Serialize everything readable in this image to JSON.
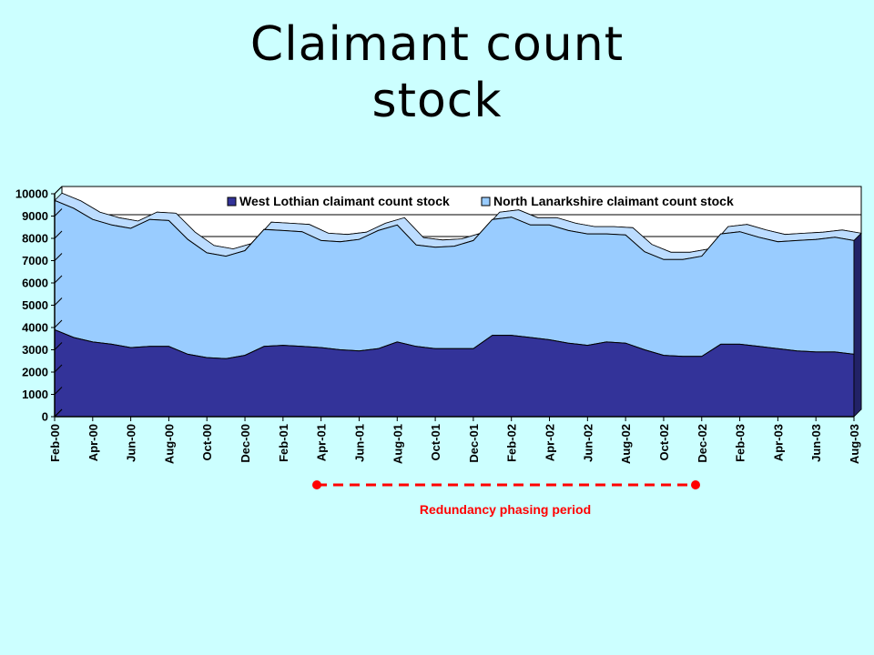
{
  "title_line1": "Claimant count",
  "title_line2": "stock",
  "annotation": "Redundancy phasing period",
  "colors": {
    "background": "#ccffff",
    "west_lothian": "#333399",
    "north_lanarkshire": "#99ccff",
    "annotation": "#ff0000"
  },
  "chart_data": {
    "type": "area",
    "stacked": true,
    "y_ticks": [
      "0",
      "1000",
      "2000",
      "3000",
      "4000",
      "5000",
      "6000",
      "7000",
      "8000",
      "9000",
      "10000"
    ],
    "ylim": [
      0,
      10000
    ],
    "x_tick_labels": [
      "Feb-00",
      "Apr-00",
      "Jun-00",
      "Aug-00",
      "Oct-00",
      "Dec-00",
      "Feb-01",
      "Apr-01",
      "Jun-01",
      "Aug-01",
      "Oct-01",
      "Dec-01",
      "Feb-02",
      "Apr-02",
      "Jun-02",
      "Aug-02",
      "Oct-02",
      "Dec-02",
      "Feb-03",
      "Apr-03",
      "Jun-03",
      "Aug-03"
    ],
    "x": [
      "Feb-00",
      "Mar-00",
      "Apr-00",
      "May-00",
      "Jun-00",
      "Jul-00",
      "Aug-00",
      "Sep-00",
      "Oct-00",
      "Nov-00",
      "Dec-00",
      "Jan-01",
      "Feb-01",
      "Mar-01",
      "Apr-01",
      "May-01",
      "Jun-01",
      "Jul-01",
      "Aug-01",
      "Sep-01",
      "Oct-01",
      "Nov-01",
      "Dec-01",
      "Jan-02",
      "Feb-02",
      "Mar-02",
      "Apr-02",
      "May-02",
      "Jun-02",
      "Jul-02",
      "Aug-02",
      "Sep-02",
      "Oct-02",
      "Nov-02",
      "Dec-02",
      "Jan-03",
      "Feb-03",
      "Mar-03",
      "Apr-03",
      "May-03",
      "Jun-03",
      "Jul-03",
      "Aug-03"
    ],
    "series": [
      {
        "name": "West Lothian claimant count stock",
        "values": [
          3900,
          3550,
          3350,
          3250,
          3100,
          3150,
          3150,
          2800,
          2650,
          2600,
          2750,
          3150,
          3200,
          3150,
          3100,
          3000,
          2950,
          3050,
          3350,
          3150,
          3050,
          3050,
          3050,
          3650,
          3650,
          3550,
          3450,
          3300,
          3200,
          3350,
          3300,
          3000,
          2750,
          2700,
          2700,
          3250,
          3250,
          3150,
          3050,
          2950,
          2900,
          2900,
          2800
        ]
      },
      {
        "name": "North Lanarkshire claimant count stock",
        "values": [
          5800,
          5800,
          5500,
          5350,
          5350,
          5700,
          5650,
          5150,
          4700,
          4600,
          4700,
          5250,
          5150,
          5150,
          4800,
          4850,
          5000,
          5300,
          5250,
          4550,
          4550,
          4600,
          4850,
          5200,
          5300,
          5050,
          5150,
          5050,
          5000,
          4850,
          4850,
          4400,
          4300,
          4350,
          4500,
          4950,
          5050,
          4900,
          4800,
          4950,
          5050,
          5150,
          5100
        ]
      }
    ]
  }
}
